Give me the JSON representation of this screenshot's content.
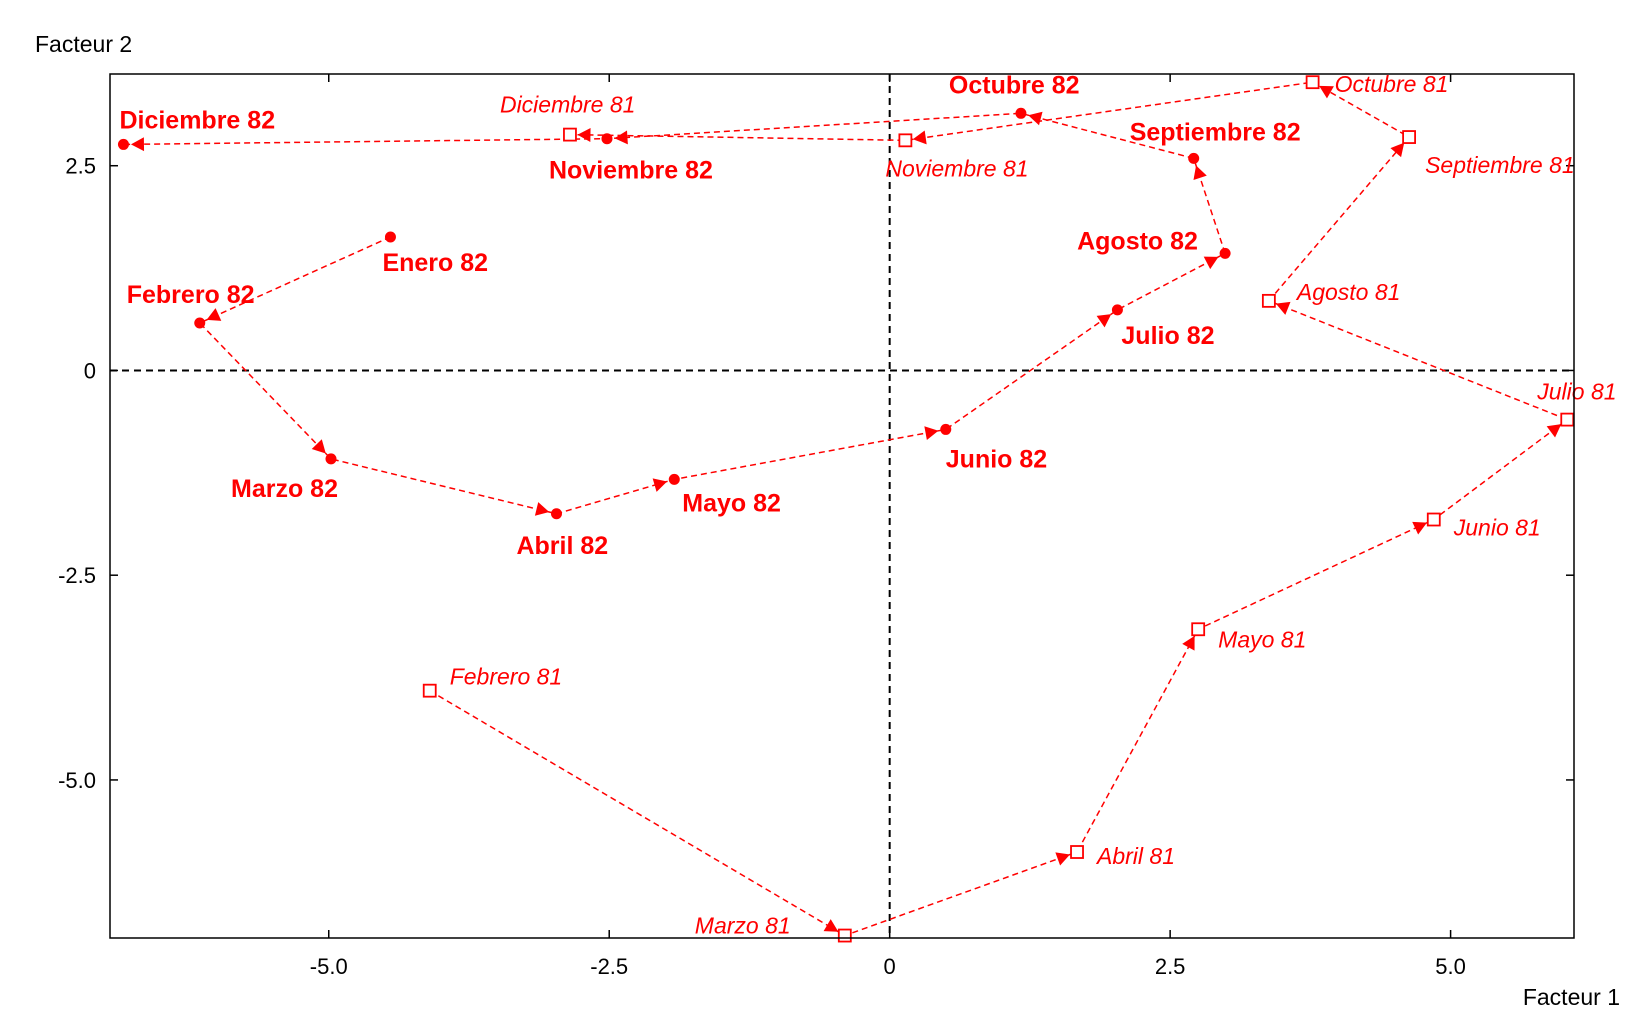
{
  "chart_data": {
    "type": "scatter",
    "title": "",
    "xlabel": "Facteur 1",
    "ylabel": "Facteur 2",
    "xlim": [
      -6.95,
      6.1
    ],
    "ylim": [
      -6.93,
      3.62
    ],
    "x_ticks": [
      -5.0,
      -2.5,
      0,
      2.5,
      5.0
    ],
    "x_tick_labels": [
      "-5.0",
      "-2.5",
      "0",
      "2.5",
      "5.0"
    ],
    "y_ticks": [
      2.5,
      0,
      -2.5,
      -5.0
    ],
    "y_tick_labels": [
      "2.5",
      "0",
      "-2.5",
      "-5.0"
    ],
    "grid": false,
    "reference_lines": [
      0,
      0
    ],
    "color": "#ff0000",
    "series": [
      {
        "marker": "filled-circle",
        "points": [
          {
            "label": "Enero 82",
            "x": -4.45,
            "y": 1.63
          },
          {
            "label": "Febrero 82",
            "x": -6.15,
            "y": 0.58
          },
          {
            "label": "Marzo 82",
            "x": -4.98,
            "y": -1.08
          },
          {
            "label": "Abril 82",
            "x": -2.97,
            "y": -1.75
          },
          {
            "label": "Mayo 82",
            "x": -1.92,
            "y": -1.33
          },
          {
            "label": "Junio 82",
            "x": 0.5,
            "y": -0.72
          },
          {
            "label": "Julio 82",
            "x": 2.03,
            "y": 0.74
          },
          {
            "label": "Agosto 82",
            "x": 2.99,
            "y": 1.43
          },
          {
            "label": "Septiembre 82",
            "x": 2.71,
            "y": 2.59
          },
          {
            "label": "Octubre 82",
            "x": 1.17,
            "y": 3.14
          },
          {
            "label": "Noviembre 82",
            "x": -2.52,
            "y": 2.83
          },
          {
            "label": "Diciembre 82",
            "x": -6.83,
            "y": 2.76
          }
        ]
      },
      {
        "marker": "open-square",
        "points": [
          {
            "label": "Febrero 81",
            "x": -4.1,
            "y": -3.91
          },
          {
            "label": "Marzo 81",
            "x": -0.4,
            "y": -6.9
          },
          {
            "label": "Abril 81",
            "x": 1.67,
            "y": -5.88
          },
          {
            "label": "Mayo 81",
            "x": 2.75,
            "y": -3.16
          },
          {
            "label": "Junio 81",
            "x": 4.85,
            "y": -1.82
          },
          {
            "label": "Julio 81",
            "x": 6.04,
            "y": -0.6
          },
          {
            "label": "Agosto 81",
            "x": 3.38,
            "y": 0.85
          },
          {
            "label": "Septiembre 81",
            "x": 4.63,
            "y": 2.85
          },
          {
            "label": "Octubre 81",
            "x": 3.77,
            "y": 3.52
          },
          {
            "label": "Noviembre 81",
            "x": 0.14,
            "y": 2.81
          },
          {
            "label": "Diciembre 81",
            "x": -2.85,
            "y": 2.88
          }
        ]
      }
    ]
  }
}
